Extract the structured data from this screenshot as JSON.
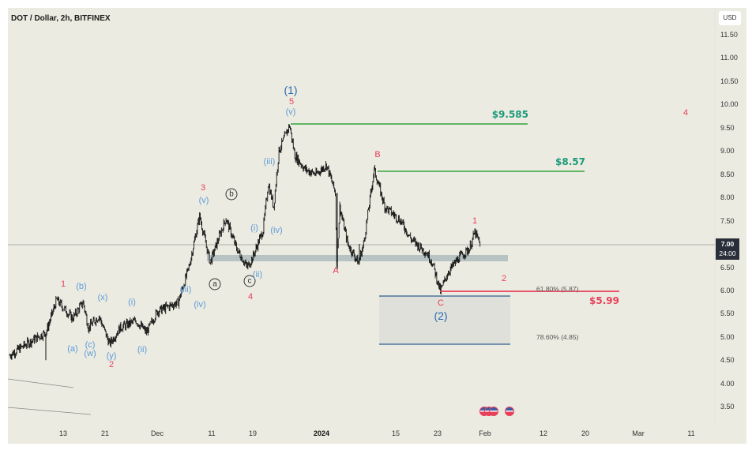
{
  "header": {
    "title": "DOT / Dollar, 2h, BITFINEX"
  },
  "price_axis": {
    "currency": "USD",
    "ticks": [
      "11.50",
      "11.00",
      "10.50",
      "10.00",
      "9.50",
      "9.00",
      "8.50",
      "8.00",
      "7.50",
      "7.00",
      "6.50",
      "6.00",
      "5.50",
      "5.00",
      "4.50",
      "4.00",
      "3.50"
    ],
    "last_price": "7.00",
    "countdown": "24:00"
  },
  "time_axis": {
    "ticks": [
      "13",
      "21",
      "Dec",
      "11",
      "19",
      "2024",
      "15",
      "23",
      "Feb",
      "12",
      "20",
      "Mar",
      "11"
    ]
  },
  "levels": {
    "l9585": "$9.585",
    "l857": "$8.57",
    "l599": "$5.99",
    "fib618": "61.80% (5.87)",
    "fib786": "78.60% (4.85)"
  },
  "wave_labels": [
    "1",
    "(b)",
    "(x)",
    "(i)",
    "(a)",
    "(c)",
    "(w)",
    "(y)",
    "2",
    "(ii)",
    "(iii)",
    "(iv)",
    "3",
    "(v)",
    "b",
    "a",
    "c",
    "(ii)",
    "4",
    "(i)",
    "(iv)",
    "(iii)",
    "(v)",
    "5",
    "(1)",
    "B",
    "A",
    "1",
    "2",
    "C",
    "(2)",
    "4"
  ],
  "colors": {
    "background": "#ecebe1",
    "wave_red": "#e8405a",
    "wave_blue": "#5b9bd8",
    "wave_dark_blue": "#2a6ab0",
    "target_line": "#4caf50",
    "target_text": "#1a9a7a",
    "stop_line": "#e8405a",
    "support_band": "#b7c3c3",
    "fib_box": "#dfe0da",
    "fib_line": "#2f5f8f"
  },
  "icons": {
    "events": "us-flag-economic-event-icon"
  },
  "chart_data": {
    "type": "candlestick",
    "symbol": "DOT / Dollar",
    "interval": "2h",
    "exchange": "BITFINEX",
    "ylim": [
      3.3,
      11.8
    ],
    "price_path": [
      [
        "2023-11-03",
        4.6
      ],
      [
        "2023-11-07",
        4.9
      ],
      [
        "2023-11-10",
        5.1
      ],
      [
        "2023-11-12",
        5.8
      ],
      [
        "2023-11-15",
        5.4
      ],
      [
        "2023-11-17",
        5.75
      ],
      [
        "2023-11-18",
        5.2
      ],
      [
        "2023-11-20",
        5.45
      ],
      [
        "2023-11-22",
        4.85
      ],
      [
        "2023-11-24",
        5.2
      ],
      [
        "2023-11-27",
        5.35
      ],
      [
        "2023-11-29",
        5.1
      ],
      [
        "2023-12-01",
        5.55
      ],
      [
        "2023-12-05",
        5.75
      ],
      [
        "2023-12-07",
        6.5
      ],
      [
        "2023-12-09",
        7.6
      ],
      [
        "2023-12-10",
        7.1
      ],
      [
        "2023-12-11",
        6.6
      ],
      [
        "2023-12-13",
        7.25
      ],
      [
        "2023-12-14",
        7.55
      ],
      [
        "2023-12-16",
        6.9
      ],
      [
        "2023-12-18",
        6.5
      ],
      [
        "2023-12-19",
        6.7
      ],
      [
        "2023-12-21",
        7.3
      ],
      [
        "2023-12-22",
        8.3
      ],
      [
        "2023-12-23",
        7.8
      ],
      [
        "2023-12-24",
        9.0
      ],
      [
        "2023-12-26",
        9.55
      ],
      [
        "2023-12-27",
        8.9
      ],
      [
        "2023-12-29",
        8.6
      ],
      [
        "2023-12-31",
        8.5
      ],
      [
        "2024-01-02",
        8.7
      ],
      [
        "2024-01-03T16:00",
        8.1
      ],
      [
        "2024-01-03T22:00",
        6.6
      ],
      [
        "2024-01-04T12:00",
        7.8
      ],
      [
        "2024-01-06",
        7.0
      ],
      [
        "2024-01-08",
        6.6
      ],
      [
        "2024-01-09",
        7.0
      ],
      [
        "2024-01-11",
        8.6
      ],
      [
        "2024-01-13",
        7.8
      ],
      [
        "2024-01-16",
        7.5
      ],
      [
        "2024-01-18",
        7.1
      ],
      [
        "2024-01-21",
        6.8
      ],
      [
        "2024-01-22",
        6.6
      ],
      [
        "2024-01-23T12:00",
        5.98
      ],
      [
        "2024-01-25",
        6.4
      ],
      [
        "2024-01-27",
        6.7
      ],
      [
        "2024-01-29",
        6.9
      ],
      [
        "2024-01-30",
        7.25
      ],
      [
        "2024-01-31",
        7.0
      ]
    ],
    "horizontal_levels": [
      9.585,
      8.57,
      5.99
    ],
    "fib_zone": [
      4.85,
      5.87
    ],
    "support_zone": [
      6.66,
      6.8
    ],
    "last_price": 7.0
  }
}
